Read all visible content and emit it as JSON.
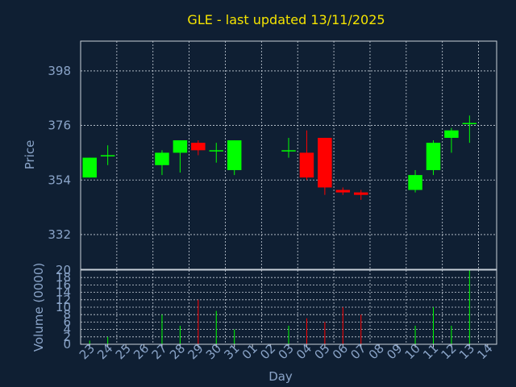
{
  "chart_data": [
    {
      "type": "candlestick",
      "title": "GLE - last updated 13/11/2025",
      "ylabel": "Price",
      "ylim": [
        318,
        410
      ],
      "yticks": [
        332,
        354,
        376,
        398
      ],
      "grid": true,
      "categories": [
        "23",
        "24",
        "25",
        "26",
        "27",
        "28",
        "29",
        "30",
        "31",
        "01",
        "02",
        "03",
        "04",
        "05",
        "06",
        "07",
        "08",
        "09",
        "10",
        "11",
        "12",
        "13",
        "14"
      ],
      "candles": [
        {
          "day": "23",
          "open": 355,
          "close": 363,
          "high": 363,
          "low": 355
        },
        {
          "day": "24",
          "open": 364,
          "close": 364,
          "high": 368,
          "low": 360
        },
        {
          "day": "27",
          "open": 360,
          "close": 365,
          "high": 366,
          "low": 356
        },
        {
          "day": "28",
          "open": 365,
          "close": 370,
          "high": 370,
          "low": 357
        },
        {
          "day": "29",
          "open": 369,
          "close": 366,
          "high": 370,
          "low": 364
        },
        {
          "day": "30",
          "open": 366,
          "close": 366,
          "high": 369,
          "low": 361
        },
        {
          "day": "31",
          "open": 358,
          "close": 370,
          "high": 370,
          "low": 356
        },
        {
          "day": "03",
          "open": 366,
          "close": 366,
          "high": 371,
          "low": 363
        },
        {
          "day": "04",
          "open": 365,
          "close": 355,
          "high": 374,
          "low": 354
        },
        {
          "day": "05",
          "open": 371,
          "close": 351,
          "high": 371,
          "low": 348
        },
        {
          "day": "06",
          "open": 350,
          "close": 349,
          "high": 351,
          "low": 348
        },
        {
          "day": "07",
          "open": 349,
          "close": 348,
          "high": 350,
          "low": 346
        },
        {
          "day": "10",
          "open": 350,
          "close": 356,
          "high": 358,
          "low": 349
        },
        {
          "day": "11",
          "open": 358,
          "close": 369,
          "high": 370,
          "low": 356
        },
        {
          "day": "12",
          "open": 371,
          "close": 374,
          "high": 375,
          "low": 365
        },
        {
          "day": "13",
          "open": 377,
          "close": 377,
          "high": 380,
          "low": 369
        }
      ],
      "up_color": "#00ff00",
      "down_color": "#ff0000"
    },
    {
      "type": "bar",
      "xlabel": "Day",
      "ylabel": "Volume (0000)",
      "ylim": [
        0,
        20
      ],
      "yticks": [
        0,
        2,
        4,
        6,
        8,
        10,
        12,
        14,
        16,
        18,
        20
      ],
      "grid": true,
      "categories": [
        "23",
        "24",
        "25",
        "26",
        "27",
        "28",
        "29",
        "30",
        "31",
        "01",
        "02",
        "03",
        "04",
        "05",
        "06",
        "07",
        "08",
        "09",
        "10",
        "11",
        "12",
        "13",
        "14"
      ],
      "bars": [
        {
          "day": "23",
          "value": 1,
          "color": "#00ff00"
        },
        {
          "day": "24",
          "value": 2,
          "color": "#00ff00"
        },
        {
          "day": "27",
          "value": 8,
          "color": "#00ff00"
        },
        {
          "day": "28",
          "value": 5,
          "color": "#00ff00"
        },
        {
          "day": "29",
          "value": 12,
          "color": "#ff0000"
        },
        {
          "day": "30",
          "value": 9,
          "color": "#00ff00"
        },
        {
          "day": "31",
          "value": 4,
          "color": "#00ff00"
        },
        {
          "day": "03",
          "value": 5,
          "color": "#00ff00"
        },
        {
          "day": "04",
          "value": 7,
          "color": "#ff0000"
        },
        {
          "day": "05",
          "value": 6,
          "color": "#ff0000"
        },
        {
          "day": "06",
          "value": 10,
          "color": "#ff0000"
        },
        {
          "day": "07",
          "value": 8,
          "color": "#ff0000"
        },
        {
          "day": "10",
          "value": 5,
          "color": "#00ff00"
        },
        {
          "day": "11",
          "value": 10,
          "color": "#00ff00"
        },
        {
          "day": "12",
          "value": 5,
          "color": "#00ff00"
        },
        {
          "day": "13",
          "value": 20,
          "color": "#00ff00"
        }
      ]
    }
  ]
}
